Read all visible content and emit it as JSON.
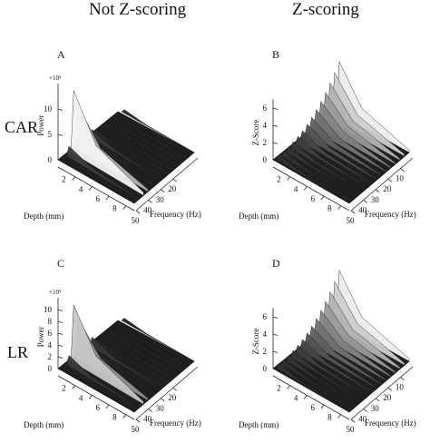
{
  "column_titles": [
    "Not Z-scoring",
    "Z-scoring"
  ],
  "row_labels": [
    "CAR",
    "LR"
  ],
  "chart_data": [
    {
      "type": "surface3d",
      "panel_letter": "A",
      "zlabel": "Power",
      "zexponent": "×10⁵",
      "zticks": [
        0,
        5,
        10
      ],
      "xlabel": "Depth (mm)",
      "xticks": [
        2,
        4,
        6,
        8
      ],
      "ylabel": "Frequency (Hz)",
      "yticks": [
        20,
        30,
        40,
        50
      ],
      "description_values": {
        "peak_power": 14,
        "peak_frequency_hz": 10,
        "peak_depth_mm": 2
      }
    },
    {
      "type": "surface3d",
      "panel_letter": "B",
      "zlabel": "Z-Score",
      "zticks": [
        0,
        2,
        4,
        6
      ],
      "xlabel": "Depth (mm)",
      "xticks": [
        2,
        4,
        6,
        8
      ],
      "ylabel": "Frequency (Hz)",
      "yticks": [
        10,
        20,
        30,
        40,
        50
      ]
    },
    {
      "type": "surface3d",
      "panel_letter": "C",
      "zlabel": "Power",
      "zexponent": "×10⁵",
      "zticks": [
        0,
        2,
        4,
        6,
        8,
        10
      ],
      "xlabel": "Depth (mm)",
      "xticks": [
        2,
        4,
        6,
        8
      ],
      "ylabel": "Frequency (Hz)",
      "yticks": [
        20,
        30,
        40,
        50
      ],
      "description_values": {
        "peak_power": 11,
        "peak_frequency_hz": 10,
        "peak_depth_mm": 2
      }
    },
    {
      "type": "surface3d",
      "panel_letter": "D",
      "zlabel": "Z-Score",
      "zticks": [
        0,
        2,
        4,
        6
      ],
      "xlabel": "Depth (mm)",
      "xticks": [
        2,
        4,
        6,
        8
      ],
      "ylabel": "Frequency (Hz)",
      "yticks": [
        10,
        20,
        30,
        40,
        50
      ]
    }
  ],
  "colors": {
    "surface_dark": "#1c1c1c",
    "surface_light": "#f2f2f2",
    "axis": "#222222"
  }
}
